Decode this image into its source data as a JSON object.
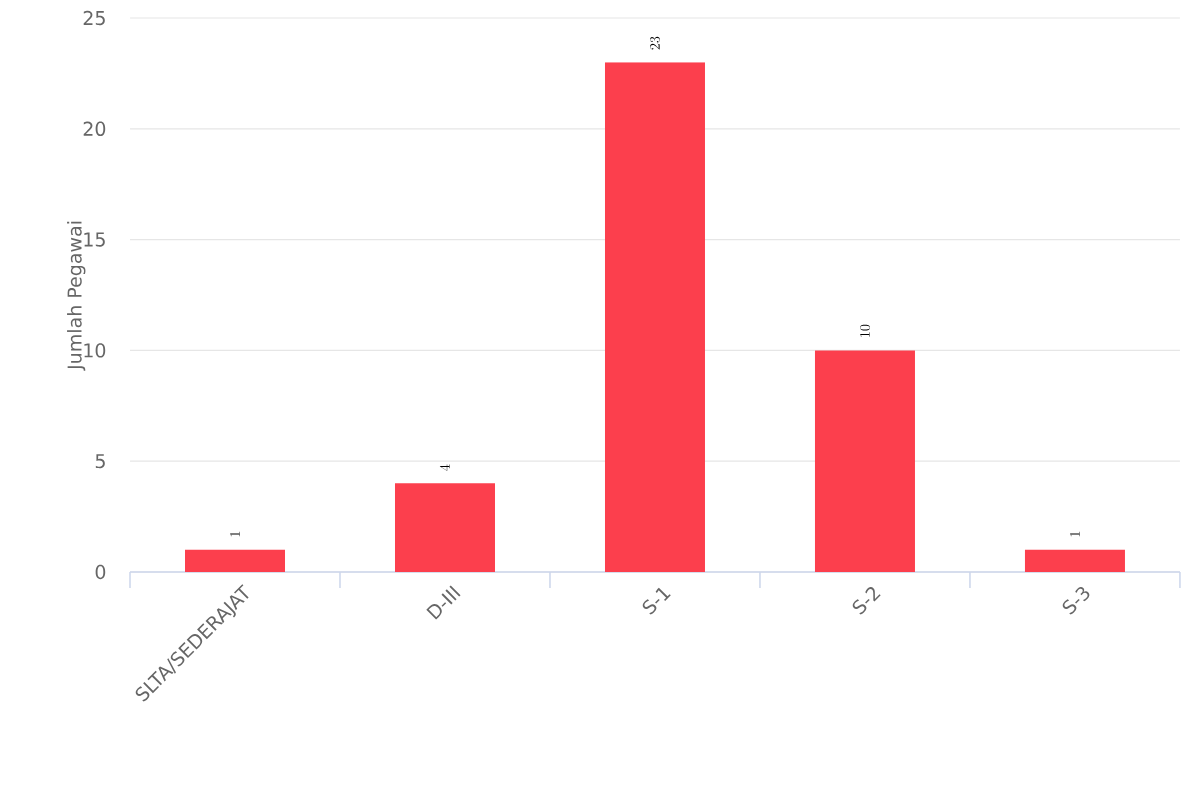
{
  "chart_data": {
    "type": "bar",
    "ylabel": "Jumlah Pegawai",
    "categories": [
      "SLTA/SEDERAJAT",
      "D-III",
      "S-1",
      "S-2",
      "S-3"
    ],
    "values": [
      1,
      4,
      23,
      10,
      1
    ],
    "color": "#fc3f4d",
    "ylim": [
      0,
      25
    ],
    "yticks": [
      0,
      5,
      10,
      15,
      20,
      25
    ],
    "grid": "y",
    "data_labels": true
  }
}
